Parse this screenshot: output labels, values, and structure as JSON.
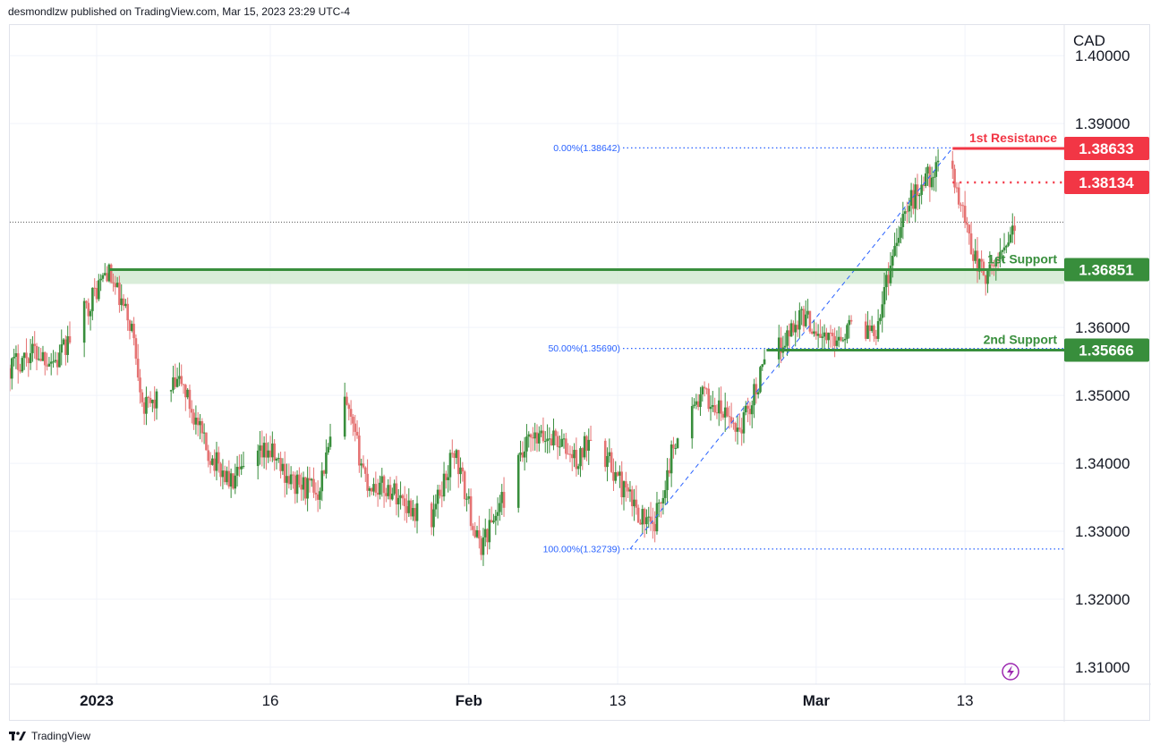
{
  "header": {
    "publisher_line": "desmondlzw published on TradingView.com, Mar 15, 2023 23:29 UTC-4"
  },
  "footer": {
    "brand": "TradingView",
    "logo_icon": "tradingview-logo-icon"
  },
  "colors": {
    "up": "#388e3c",
    "down": "#e57373",
    "resistance": "#f23645",
    "support": "#388e3c",
    "fib": "#2962ff",
    "zone_fill": "#cfe9cf",
    "grid": "#f0f3fa",
    "axis_text": "#131722"
  },
  "chart_data": {
    "type": "candlestick",
    "symbol_currency": "CAD",
    "y_axis": {
      "ylim": [
        1.3075,
        1.4045
      ],
      "ticks": [
        "1.40000",
        "1.39000",
        "1.36000",
        "1.35000",
        "1.34000",
        "1.33000",
        "1.32000",
        "1.31000"
      ],
      "tick_values": [
        1.4,
        1.39,
        1.36,
        1.35,
        1.34,
        1.33,
        1.32,
        1.31
      ]
    },
    "x_axis": {
      "range": [
        "2022-12-26",
        "2023-03-21"
      ],
      "labels": [
        {
          "text": "2023",
          "date": "2023-01-02",
          "bold": true
        },
        {
          "text": "16",
          "date": "2023-01-16",
          "bold": false
        },
        {
          "text": "Feb",
          "date": "2023-02-01",
          "bold": true
        },
        {
          "text": "13",
          "date": "2023-02-13",
          "bold": false
        },
        {
          "text": "Mar",
          "date": "2023-03-01",
          "bold": true
        },
        {
          "text": "13",
          "date": "2023-03-13",
          "bold": false
        }
      ]
    },
    "candle_interval": "4h",
    "path": [
      {
        "date": "2022-12-26",
        "price": 1.354
      },
      {
        "date": "2022-12-28",
        "price": 1.3565
      },
      {
        "date": "2022-12-30",
        "price": 1.355
      },
      {
        "date": "2023-01-03",
        "price": 1.3684
      },
      {
        "date": "2023-01-05",
        "price": 1.36
      },
      {
        "date": "2023-01-06",
        "price": 1.348
      },
      {
        "date": "2023-01-09",
        "price": 1.352
      },
      {
        "date": "2023-01-11",
        "price": 1.342
      },
      {
        "date": "2023-01-13",
        "price": 1.337
      },
      {
        "date": "2023-01-16",
        "price": 1.342
      },
      {
        "date": "2023-01-18",
        "price": 1.337
      },
      {
        "date": "2023-01-20",
        "price": 1.336
      },
      {
        "date": "2023-01-22",
        "price": 1.35
      },
      {
        "date": "2023-01-24",
        "price": 1.337
      },
      {
        "date": "2023-01-26",
        "price": 1.336
      },
      {
        "date": "2023-01-29",
        "price": 1.331
      },
      {
        "date": "2023-01-31",
        "price": 1.342
      },
      {
        "date": "2023-02-02",
        "price": 1.3275
      },
      {
        "date": "2023-02-04",
        "price": 1.335
      },
      {
        "date": "2023-02-06",
        "price": 1.343
      },
      {
        "date": "2023-02-08",
        "price": 1.344
      },
      {
        "date": "2023-02-10",
        "price": 1.34
      },
      {
        "date": "2023-02-11",
        "price": 1.345
      },
      {
        "date": "2023-02-14",
        "price": 1.335
      },
      {
        "date": "2023-02-16",
        "price": 1.33
      },
      {
        "date": "2023-02-18",
        "price": 1.345
      },
      {
        "date": "2023-02-20",
        "price": 1.35
      },
      {
        "date": "2023-02-23",
        "price": 1.345
      },
      {
        "date": "2023-02-25",
        "price": 1.354
      },
      {
        "date": "2023-02-28",
        "price": 1.362
      },
      {
        "date": "2023-03-02",
        "price": 1.358
      },
      {
        "date": "2023-03-04",
        "price": 1.36
      },
      {
        "date": "2023-03-06",
        "price": 1.36
      },
      {
        "date": "2023-03-08",
        "price": 1.376
      },
      {
        "date": "2023-03-10",
        "price": 1.382
      },
      {
        "date": "2023-03-12",
        "price": 1.384
      },
      {
        "date": "2023-03-14",
        "price": 1.37
      },
      {
        "date": "2023-03-15",
        "price": 1.367
      },
      {
        "date": "2023-03-17",
        "price": 1.375
      }
    ],
    "levels": [
      {
        "name": "1st Resistance",
        "price": 1.38633,
        "label": "1.38633",
        "style": "solid",
        "color": "#f23645",
        "start": "2023-03-12"
      },
      {
        "name": "",
        "price": 1.38134,
        "label": "1.38134",
        "style": "dotted",
        "color": "#f23645",
        "start": "2023-03-12"
      },
      {
        "name": "1st Support",
        "price": 1.36851,
        "label": "1.36851",
        "style": "solid",
        "color": "#388e3c",
        "start": "2023-01-03",
        "zone_low": 1.3664
      },
      {
        "name": "2nd Support",
        "price": 1.35666,
        "label": "1.35666",
        "style": "solid",
        "color": "#388e3c",
        "start": "2023-02-25"
      }
    ],
    "fibonacci": {
      "from": {
        "date": "2023-02-14",
        "price": 1.32739
      },
      "to": {
        "date": "2023-03-12",
        "price": 1.38642
      },
      "levels": [
        {
          "label": "0.00%(1.38642)",
          "price": 1.38642
        },
        {
          "label": "50.00%(1.35690)",
          "price": 1.3569
        },
        {
          "label": "100.00%(1.32739)",
          "price": 1.32739
        }
      ]
    },
    "last_price_line": 1.3755,
    "annotation_icon": "lightning-icon"
  }
}
